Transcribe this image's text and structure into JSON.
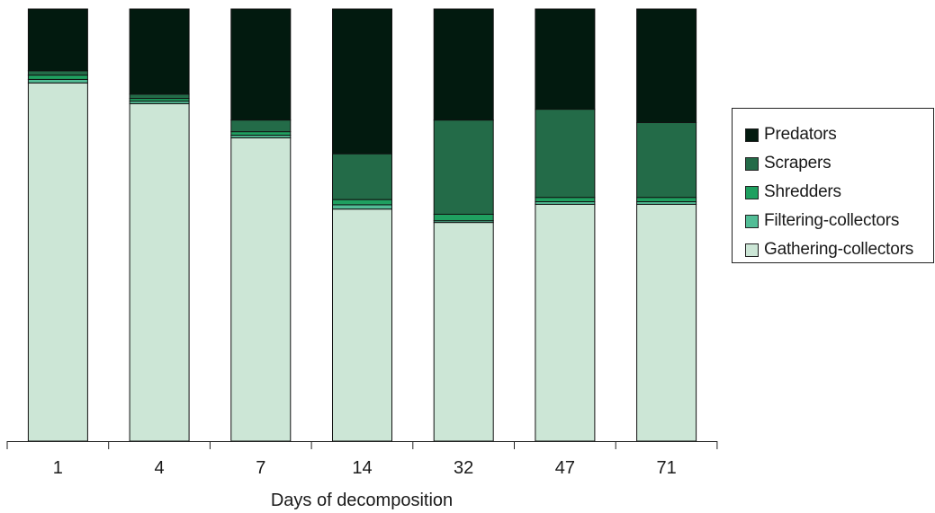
{
  "chart_data": {
    "type": "bar",
    "stacked": true,
    "normalized": true,
    "categories": [
      "1",
      "4",
      "7",
      "14",
      "32",
      "47",
      "71"
    ],
    "xlabel": "Days of decomposition",
    "ylabel": "",
    "ylim": [
      0,
      1
    ],
    "grid": false,
    "legend_position": "right",
    "series": [
      {
        "name": "Gathering-collectors",
        "color": "#cce6d6",
        "values": [
          0.829,
          0.781,
          0.702,
          0.537,
          0.506,
          0.548,
          0.548
        ]
      },
      {
        "name": "Filtering-collectors",
        "color": "#52bd96",
        "values": [
          0.008,
          0.006,
          0.006,
          0.01,
          0.004,
          0.006,
          0.006
        ]
      },
      {
        "name": "Shredders",
        "color": "#1fa060",
        "values": [
          0.01,
          0.006,
          0.008,
          0.012,
          0.015,
          0.01,
          0.01
        ]
      },
      {
        "name": "Scrapers",
        "color": "#236b48",
        "values": [
          0.01,
          0.01,
          0.027,
          0.106,
          0.218,
          0.204,
          0.173
        ]
      },
      {
        "name": "Predators",
        "color": "#021a0f",
        "values": [
          0.143,
          0.197,
          0.257,
          0.335,
          0.257,
          0.232,
          0.263
        ]
      }
    ]
  },
  "legend": {
    "items": [
      {
        "label": "Predators",
        "color": "#021a0f"
      },
      {
        "label": "Scrapers",
        "color": "#236b48"
      },
      {
        "label": "Shredders",
        "color": "#1fa060"
      },
      {
        "label": "Filtering-collectors",
        "color": "#52bd96"
      },
      {
        "label": "Gathering-collectors",
        "color": "#cce6d6"
      }
    ]
  }
}
